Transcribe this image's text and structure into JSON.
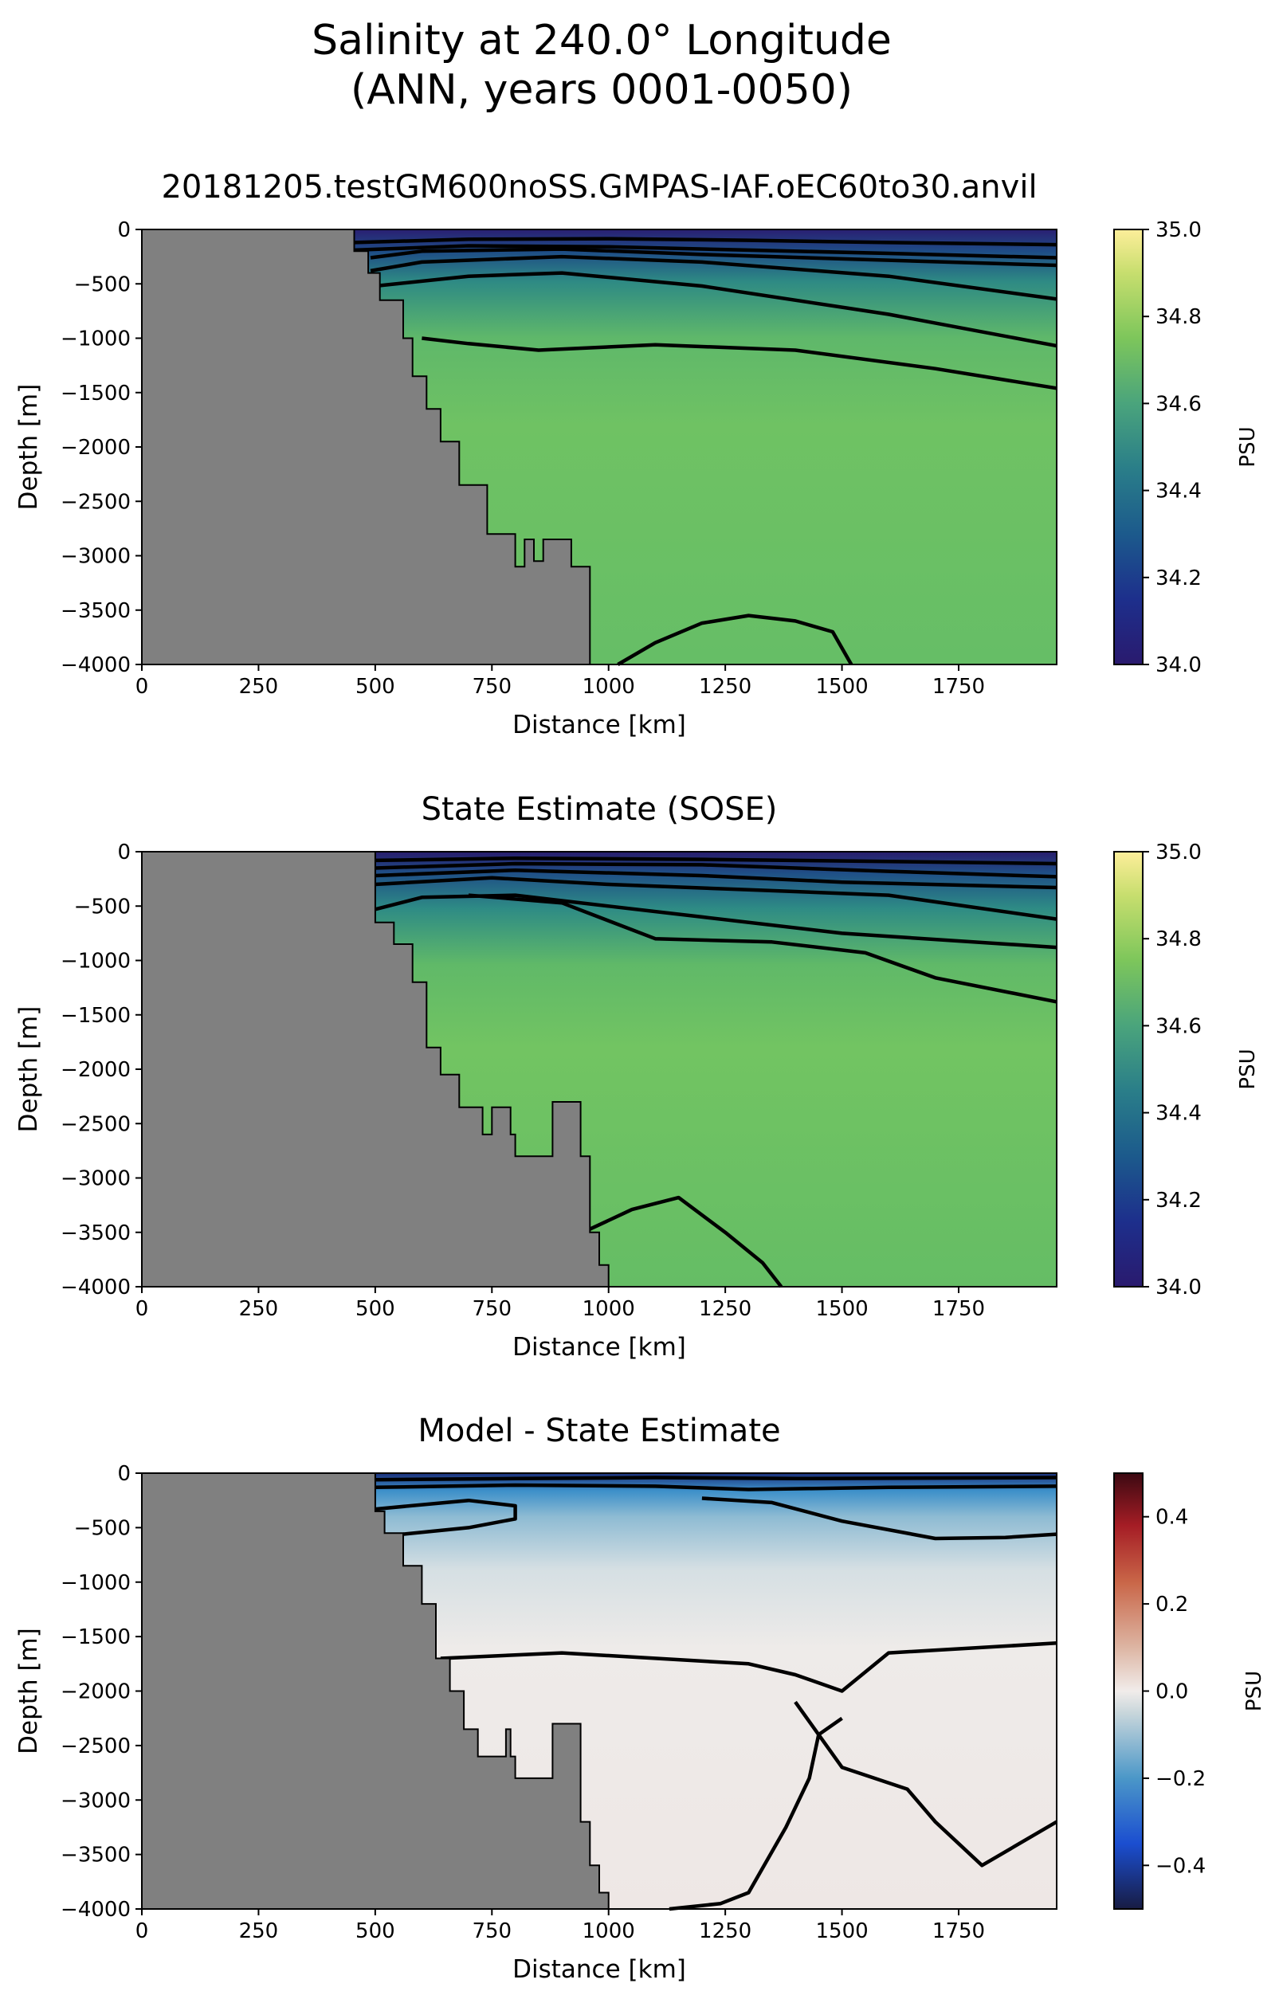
{
  "figure": {
    "title_line1": "Salinity at 240.0° Longitude",
    "title_line2": "(ANN, years 0001-0050)"
  },
  "chart_data": [
    {
      "type": "heatmap",
      "title": "20181205.testGM600noSS.GMPAS-IAF.oEC60to30.anvil",
      "xlabel": "Distance [km]",
      "ylabel": "Depth [m]",
      "xlim": [
        0,
        1960
      ],
      "ylim": [
        -4000,
        0
      ],
      "xticks": [
        0,
        250,
        500,
        750,
        1000,
        1250,
        1500,
        1750
      ],
      "yticks": [
        0,
        -500,
        -1000,
        -1500,
        -2000,
        -2500,
        -3000,
        -3500,
        -4000
      ],
      "colorbar": {
        "label": "PSU",
        "range": [
          34.0,
          35.0
        ],
        "ticks": [
          "34.0",
          "34.2",
          "34.4",
          "34.6",
          "34.8",
          "35.0"
        ],
        "colormap": "haline"
      },
      "land_color": "#808080",
      "contour_color": "#000000",
      "bathymetry": [
        [
          0,
          0
        ],
        [
          455,
          0
        ],
        [
          455,
          -200
        ],
        [
          485,
          -200
        ],
        [
          485,
          -400
        ],
        [
          510,
          -400
        ],
        [
          510,
          -650
        ],
        [
          560,
          -650
        ],
        [
          560,
          -1000
        ],
        [
          580,
          -1000
        ],
        [
          580,
          -1350
        ],
        [
          610,
          -1350
        ],
        [
          610,
          -1650
        ],
        [
          640,
          -1650
        ],
        [
          640,
          -1950
        ],
        [
          680,
          -1950
        ],
        [
          680,
          -2350
        ],
        [
          740,
          -2350
        ],
        [
          740,
          -2800
        ],
        [
          800,
          -2800
        ],
        [
          800,
          -3100
        ],
        [
          820,
          -3100
        ],
        [
          820,
          -2850
        ],
        [
          840,
          -2850
        ],
        [
          840,
          -3050
        ],
        [
          860,
          -3050
        ],
        [
          860,
          -2850
        ],
        [
          920,
          -2850
        ],
        [
          920,
          -3100
        ],
        [
          960,
          -3100
        ],
        [
          960,
          -4000
        ],
        [
          0,
          -4000
        ]
      ],
      "contours": [
        [
          [
            455,
            -120
          ],
          [
            700,
            -90
          ],
          [
            1000,
            -85
          ],
          [
            1300,
            -100
          ],
          [
            1600,
            -120
          ],
          [
            1960,
            -140
          ]
        ],
        [
          [
            455,
            -190
          ],
          [
            700,
            -150
          ],
          [
            1000,
            -160
          ],
          [
            1300,
            -190
          ],
          [
            1600,
            -220
          ],
          [
            1960,
            -260
          ]
        ],
        [
          [
            490,
            -260
          ],
          [
            600,
            -200
          ],
          [
            900,
            -180
          ],
          [
            1200,
            -230
          ],
          [
            1500,
            -270
          ],
          [
            1960,
            -330
          ]
        ],
        [
          [
            490,
            -380
          ],
          [
            600,
            -300
          ],
          [
            900,
            -250
          ],
          [
            1200,
            -300
          ],
          [
            1600,
            -430
          ],
          [
            1960,
            -640
          ]
        ],
        [
          [
            500,
            -520
          ],
          [
            700,
            -430
          ],
          [
            900,
            -400
          ],
          [
            1200,
            -520
          ],
          [
            1600,
            -780
          ],
          [
            1960,
            -1070
          ]
        ],
        [
          [
            600,
            -1000
          ],
          [
            700,
            -1050
          ],
          [
            850,
            -1110
          ],
          [
            1100,
            -1060
          ],
          [
            1400,
            -1110
          ],
          [
            1700,
            -1280
          ],
          [
            1960,
            -1460
          ]
        ],
        [
          [
            1020,
            -4000
          ],
          [
            1100,
            -3800
          ],
          [
            1200,
            -3620
          ],
          [
            1300,
            -3550
          ],
          [
            1400,
            -3600
          ],
          [
            1480,
            -3700
          ],
          [
            1520,
            -4000
          ]
        ]
      ]
    },
    {
      "type": "heatmap",
      "title": "State Estimate (SOSE)",
      "xlabel": "Distance [km]",
      "ylabel": "Depth [m]",
      "xlim": [
        0,
        1960
      ],
      "ylim": [
        -4000,
        0
      ],
      "xticks": [
        0,
        250,
        500,
        750,
        1000,
        1250,
        1500,
        1750
      ],
      "yticks": [
        0,
        -500,
        -1000,
        -1500,
        -2000,
        -2500,
        -3000,
        -3500,
        -4000
      ],
      "colorbar": {
        "label": "PSU",
        "range": [
          34.0,
          35.0
        ],
        "ticks": [
          "34.0",
          "34.2",
          "34.4",
          "34.6",
          "34.8",
          "35.0"
        ],
        "colormap": "haline"
      },
      "land_color": "#808080",
      "contour_color": "#000000",
      "bathymetry": [
        [
          0,
          0
        ],
        [
          500,
          0
        ],
        [
          500,
          -650
        ],
        [
          540,
          -650
        ],
        [
          540,
          -850
        ],
        [
          580,
          -850
        ],
        [
          580,
          -1200
        ],
        [
          610,
          -1200
        ],
        [
          610,
          -1800
        ],
        [
          640,
          -1800
        ],
        [
          640,
          -2050
        ],
        [
          680,
          -2050
        ],
        [
          680,
          -2350
        ],
        [
          730,
          -2350
        ],
        [
          730,
          -2600
        ],
        [
          750,
          -2600
        ],
        [
          750,
          -2350
        ],
        [
          790,
          -2350
        ],
        [
          790,
          -2600
        ],
        [
          800,
          -2600
        ],
        [
          800,
          -2800
        ],
        [
          880,
          -2800
        ],
        [
          880,
          -2300
        ],
        [
          940,
          -2300
        ],
        [
          940,
          -2800
        ],
        [
          960,
          -2800
        ],
        [
          960,
          -3500
        ],
        [
          980,
          -3500
        ],
        [
          980,
          -3800
        ],
        [
          1000,
          -3800
        ],
        [
          1000,
          -4000
        ],
        [
          0,
          -4000
        ]
      ],
      "contours": [
        [
          [
            500,
            -80
          ],
          [
            800,
            -60
          ],
          [
            1200,
            -70
          ],
          [
            1600,
            -90
          ],
          [
            1960,
            -110
          ]
        ],
        [
          [
            500,
            -150
          ],
          [
            800,
            -110
          ],
          [
            1200,
            -120
          ],
          [
            1600,
            -180
          ],
          [
            1960,
            -230
          ]
        ],
        [
          [
            500,
            -220
          ],
          [
            800,
            -170
          ],
          [
            1200,
            -220
          ],
          [
            1500,
            -280
          ],
          [
            1960,
            -330
          ]
        ],
        [
          [
            500,
            -300
          ],
          [
            750,
            -240
          ],
          [
            1000,
            -300
          ],
          [
            1300,
            -350
          ],
          [
            1600,
            -400
          ],
          [
            1960,
            -620
          ]
        ],
        [
          [
            500,
            -530
          ],
          [
            600,
            -420
          ],
          [
            800,
            -400
          ],
          [
            1000,
            -500
          ],
          [
            1200,
            -600
          ],
          [
            1500,
            -750
          ],
          [
            1960,
            -880
          ]
        ],
        [
          [
            700,
            -400
          ],
          [
            900,
            -470
          ],
          [
            1100,
            -800
          ],
          [
            1350,
            -830
          ],
          [
            1550,
            -930
          ],
          [
            1700,
            -1160
          ],
          [
            1960,
            -1380
          ]
        ],
        [
          [
            960,
            -3470
          ],
          [
            1050,
            -3290
          ],
          [
            1150,
            -3180
          ],
          [
            1250,
            -3500
          ],
          [
            1330,
            -3780
          ],
          [
            1370,
            -4000
          ]
        ]
      ]
    },
    {
      "type": "heatmap",
      "title": "Model - State Estimate",
      "xlabel": "Distance [km]",
      "ylabel": "Depth [m]",
      "xlim": [
        0,
        1960
      ],
      "ylim": [
        -4000,
        0
      ],
      "xticks": [
        0,
        250,
        500,
        750,
        1000,
        1250,
        1500,
        1750
      ],
      "yticks": [
        0,
        -500,
        -1000,
        -1500,
        -2000,
        -2500,
        -3000,
        -3500,
        -4000
      ],
      "colorbar": {
        "label": "PSU",
        "range": [
          -0.5,
          0.5
        ],
        "ticks": [
          "0.4",
          "0.2",
          "0.0",
          "−0.2",
          "−0.4"
        ],
        "colormap": "balance"
      },
      "land_color": "#808080",
      "contour_color": "#000000",
      "bathymetry": [
        [
          0,
          0
        ],
        [
          500,
          0
        ],
        [
          500,
          -350
        ],
        [
          520,
          -350
        ],
        [
          520,
          -550
        ],
        [
          560,
          -550
        ],
        [
          560,
          -850
        ],
        [
          600,
          -850
        ],
        [
          600,
          -1200
        ],
        [
          630,
          -1200
        ],
        [
          630,
          -1700
        ],
        [
          660,
          -1700
        ],
        [
          660,
          -2000
        ],
        [
          690,
          -2000
        ],
        [
          690,
          -2350
        ],
        [
          720,
          -2350
        ],
        [
          720,
          -2600
        ],
        [
          780,
          -2600
        ],
        [
          780,
          -2350
        ],
        [
          790,
          -2350
        ],
        [
          790,
          -2600
        ],
        [
          800,
          -2600
        ],
        [
          800,
          -2800
        ],
        [
          880,
          -2800
        ],
        [
          880,
          -2300
        ],
        [
          940,
          -2300
        ],
        [
          940,
          -3200
        ],
        [
          960,
          -3200
        ],
        [
          960,
          -3600
        ],
        [
          980,
          -3600
        ],
        [
          980,
          -3850
        ],
        [
          1000,
          -3850
        ],
        [
          1000,
          -4000
        ],
        [
          0,
          -4000
        ]
      ],
      "contours": [
        [
          [
            500,
            -60
          ],
          [
            800,
            -50
          ],
          [
            1100,
            -40
          ],
          [
            1400,
            -50
          ],
          [
            1960,
            -40
          ]
        ],
        [
          [
            500,
            -130
          ],
          [
            800,
            -110
          ],
          [
            1100,
            -120
          ],
          [
            1300,
            -150
          ],
          [
            1600,
            -130
          ],
          [
            1960,
            -120
          ]
        ],
        [
          [
            500,
            -330
          ],
          [
            700,
            -250
          ],
          [
            800,
            -300
          ],
          [
            800,
            -420
          ],
          [
            700,
            -500
          ],
          [
            560,
            -560
          ]
        ],
        [
          [
            1200,
            -230
          ],
          [
            1350,
            -270
          ],
          [
            1500,
            -440
          ],
          [
            1700,
            -600
          ],
          [
            1850,
            -590
          ],
          [
            1960,
            -560
          ]
        ],
        [
          [
            640,
            -1700
          ],
          [
            900,
            -1650
          ],
          [
            1300,
            -1750
          ],
          [
            1400,
            -1850
          ],
          [
            1500,
            -2000
          ],
          [
            1600,
            -1650
          ],
          [
            1960,
            -1560
          ]
        ],
        [
          [
            1400,
            -2100
          ],
          [
            1500,
            -2700
          ],
          [
            1640,
            -2900
          ],
          [
            1700,
            -3200
          ],
          [
            1800,
            -3600
          ],
          [
            1960,
            -3200
          ]
        ],
        [
          [
            1130,
            -4000
          ],
          [
            1240,
            -3950
          ],
          [
            1300,
            -3850
          ],
          [
            1380,
            -3250
          ],
          [
            1430,
            -2800
          ],
          [
            1450,
            -2400
          ],
          [
            1500,
            -2250
          ]
        ]
      ]
    }
  ]
}
